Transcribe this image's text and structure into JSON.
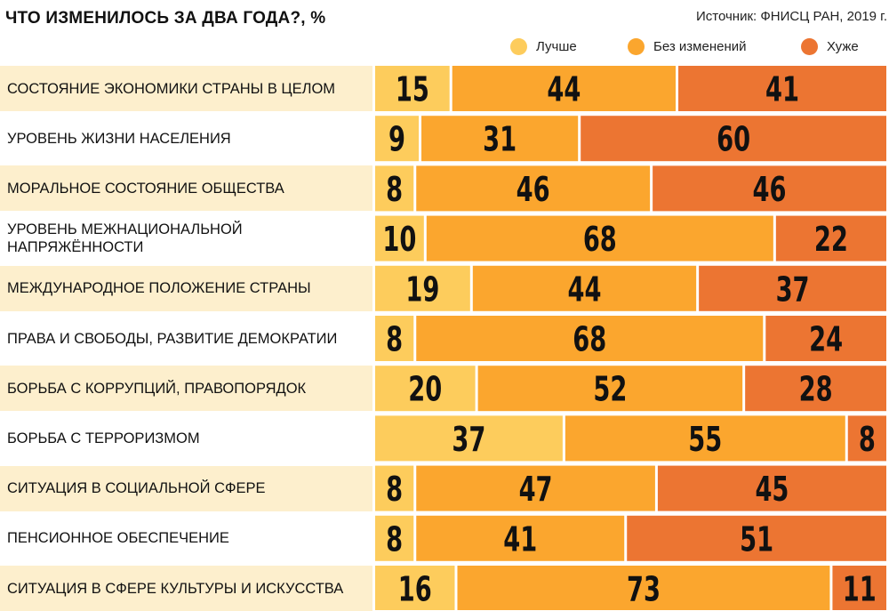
{
  "title": "ЧТО ИЗМЕНИЛОСЬ ЗА ДВА ГОДА?, %",
  "source": "Источник: ФНИСЦ РАН, 2019 г.",
  "colors": {
    "better": "#fdcc5c",
    "same": "#fba62e",
    "worse": "#ec7532",
    "stripe": "#fdefcd"
  },
  "chart_data": {
    "type": "bar",
    "stacked": true,
    "orientation": "horizontal",
    "unit": "%",
    "title": "ЧТО ИЗМЕНИЛОСЬ ЗА ДВА ГОДА?, %",
    "source": "Источник: ФНИСЦ РАН, 2019 г.",
    "legend_position": "top-right",
    "categories": [
      "Состояние экономики страны в целом",
      "Уровень жизни населения",
      "Моральное состояние общества",
      "Уровень межнациональной\nнапряжённости",
      "Международное положение страны",
      "Права и свободы, развитие демократии",
      "Борьба с коррупций, правопорядок",
      "Борьба с терроризмом",
      "Ситуация в социальной сфере",
      "Пенсионное обеспечение",
      "Ситуация в сфере культуры и искусства"
    ],
    "series": [
      {
        "name": "Лучше",
        "values": [
          15,
          9,
          8,
          10,
          19,
          8,
          20,
          37,
          8,
          8,
          16
        ]
      },
      {
        "name": "Без изменений",
        "values": [
          44,
          31,
          46,
          68,
          44,
          68,
          52,
          55,
          47,
          41,
          73
        ]
      },
      {
        "name": "Хуже",
        "values": [
          41,
          60,
          46,
          22,
          37,
          24,
          28,
          8,
          45,
          51,
          11
        ]
      }
    ]
  }
}
